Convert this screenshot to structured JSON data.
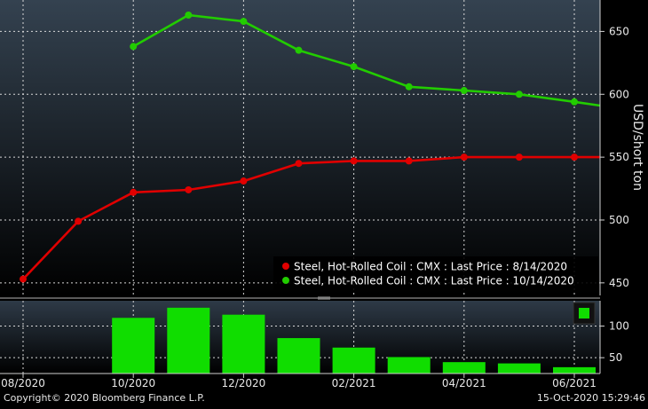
{
  "chart_data": {
    "type": "line",
    "title": "",
    "ylabel": "USD/short ton",
    "x_ticks": [
      "08/2020",
      "10/2020",
      "12/2020",
      "02/2021",
      "04/2021",
      "06/2021"
    ],
    "x_months": [
      "08/2020",
      "09/2020",
      "10/2020",
      "11/2020",
      "12/2020",
      "01/2021",
      "02/2021",
      "03/2021",
      "04/2021",
      "05/2021",
      "06/2021"
    ],
    "y_ticks": [
      450,
      500,
      550,
      600,
      650
    ],
    "ylim": [
      440,
      675
    ],
    "series": [
      {
        "name": "Steel, Hot-Rolled Coil : CMX : Last Price : 8/14/2020",
        "color": "#e00000",
        "x": [
          "08/2020",
          "09/2020",
          "10/2020",
          "11/2020",
          "12/2020",
          "01/2021",
          "02/2021",
          "03/2021",
          "04/2021",
          "05/2021",
          "06/2021"
        ],
        "values": [
          453,
          499,
          522,
          524,
          531,
          545,
          547,
          547,
          550,
          550,
          550
        ],
        "extends_right": true
      },
      {
        "name": "Steel, Hot-Rolled Coil : CMX : Last Price : 10/14/2020",
        "color": "#22cc00",
        "x": [
          "10/2020",
          "11/2020",
          "12/2020",
          "01/2021",
          "02/2021",
          "03/2021",
          "04/2021",
          "05/2021",
          "06/2021"
        ],
        "values": [
          638,
          663,
          658,
          635,
          622,
          606,
          603,
          600,
          594
        ],
        "extends_right": true,
        "end_value": 591
      }
    ],
    "volume": {
      "color": "#10dd00",
      "y_ticks": [
        50,
        100
      ],
      "ylim": [
        25,
        140
      ],
      "x": [
        "10/2020",
        "11/2020",
        "12/2020",
        "01/2021",
        "02/2021",
        "03/2021",
        "04/2021",
        "05/2021",
        "06/2021"
      ],
      "values": [
        113,
        129,
        118,
        81,
        66,
        51,
        43,
        41,
        35
      ]
    },
    "legend_position": "bottom-right",
    "grid": true
  },
  "footer": {
    "copyright": "Copyright© 2020 Bloomberg Finance L.P.",
    "timestamp": "15-Oct-2020 15:29:46"
  }
}
